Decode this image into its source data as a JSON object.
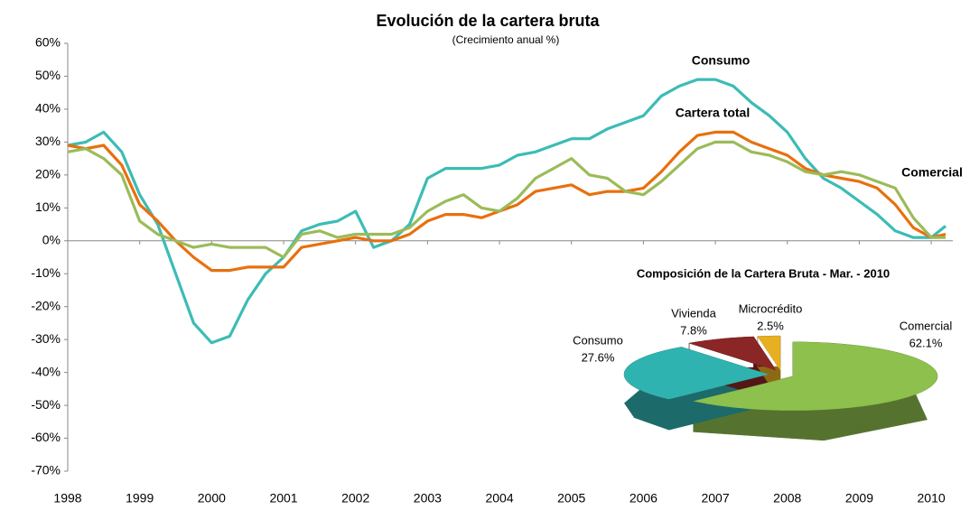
{
  "chart_data": [
    {
      "type": "line",
      "title": "Evolución de la cartera bruta",
      "subtitle": "(Crecimiento anual %)",
      "x": [
        1998,
        1998.25,
        1998.5,
        1998.75,
        1999,
        1999.25,
        1999.5,
        1999.75,
        2000,
        2000.25,
        2000.5,
        2000.75,
        2001,
        2001.25,
        2001.5,
        2001.75,
        2002,
        2002.25,
        2002.5,
        2002.75,
        2003,
        2003.25,
        2003.5,
        2003.75,
        2004,
        2004.25,
        2004.5,
        2004.75,
        2005,
        2005.25,
        2005.5,
        2005.75,
        2006,
        2006.25,
        2006.5,
        2006.75,
        2007,
        2007.25,
        2007.5,
        2007.75,
        2008,
        2008.25,
        2008.5,
        2008.75,
        2009,
        2009.25,
        2009.5,
        2009.75,
        2010,
        2010.2
      ],
      "series": [
        {
          "name": "Consumo",
          "color": "#3cbcb6",
          "label_color": "#1f7fc0",
          "values": [
            29,
            30,
            33,
            27,
            14,
            5,
            -10,
            -25,
            -31,
            -29,
            -18,
            -10,
            -5,
            3,
            5,
            6,
            9,
            -2,
            0,
            5,
            19,
            22,
            22,
            22,
            23,
            26,
            27,
            29,
            31,
            31,
            34,
            36,
            38,
            44,
            47,
            49,
            49,
            47,
            42,
            38,
            33,
            25,
            19,
            16,
            12,
            8,
            3,
            1,
            1,
            4.5
          ]
        },
        {
          "name": "Cartera total",
          "color": "#e8700e",
          "label_color": "#c0622a",
          "values": [
            29,
            28,
            29,
            23,
            11,
            6,
            0,
            -5,
            -9,
            -9,
            -8,
            -8,
            -8,
            -2,
            -1,
            0,
            1,
            0,
            0,
            2,
            6,
            8,
            8,
            7,
            9,
            11,
            15,
            16,
            17,
            14,
            15,
            15,
            16,
            21,
            27,
            32,
            33,
            33,
            30,
            28,
            26,
            22,
            20,
            19,
            18,
            16,
            11,
            4,
            1,
            2
          ]
        },
        {
          "name": "Comercial",
          "color": "#9bbb59",
          "label_color": "#6e8b3d",
          "values": [
            27,
            28,
            25,
            20,
            6,
            2,
            0,
            -2,
            -1,
            -2,
            -2,
            -2,
            -5,
            2,
            3,
            1,
            2,
            2,
            2,
            4,
            9,
            12,
            14,
            10,
            9,
            13,
            19,
            22,
            25,
            20,
            19,
            15,
            14,
            18,
            23,
            28,
            30,
            30,
            27,
            26,
            24,
            21,
            20,
            21,
            20,
            18,
            16,
            7,
            1,
            1
          ]
        }
      ],
      "xlim": [
        1998,
        2010.3
      ],
      "xticks": [
        1998,
        1999,
        2000,
        2001,
        2002,
        2003,
        2004,
        2005,
        2006,
        2007,
        2008,
        2009,
        2010
      ],
      "ylim": [
        -70,
        60
      ],
      "yticks": [
        {
          "value": 60,
          "label": "60%"
        },
        {
          "value": 50,
          "label": "50%"
        },
        {
          "value": 40,
          "label": "40%"
        },
        {
          "value": 30,
          "label": "30%"
        },
        {
          "value": 20,
          "label": "20%"
        },
        {
          "value": 10,
          "label": "10%"
        },
        {
          "value": 0,
          "label": "0%"
        },
        {
          "value": -10,
          "label": "-10%"
        },
        {
          "value": -20,
          "label": "-20%"
        },
        {
          "value": -30,
          "label": "-30%"
        },
        {
          "value": -40,
          "label": "-40%"
        },
        {
          "value": -50,
          "label": "-50%"
        },
        {
          "value": -60,
          "label": "-60%"
        },
        {
          "value": -70,
          "label": "-70%"
        }
      ],
      "grid": false
    },
    {
      "type": "pie",
      "title": "Composición de la Cartera Bruta - Mar. - 2010",
      "categories": [
        "Comercial",
        "Consumo",
        "Vivienda",
        "Microcrédito"
      ],
      "values": [
        62.1,
        27.6,
        7.8,
        2.5
      ],
      "value_labels": [
        "62.1%",
        "27.6%",
        "7.8%",
        "2.5%"
      ],
      "colors": [
        "#8dc04c",
        "#2fb3b0",
        "#8b2626",
        "#e8b020"
      ]
    }
  ]
}
